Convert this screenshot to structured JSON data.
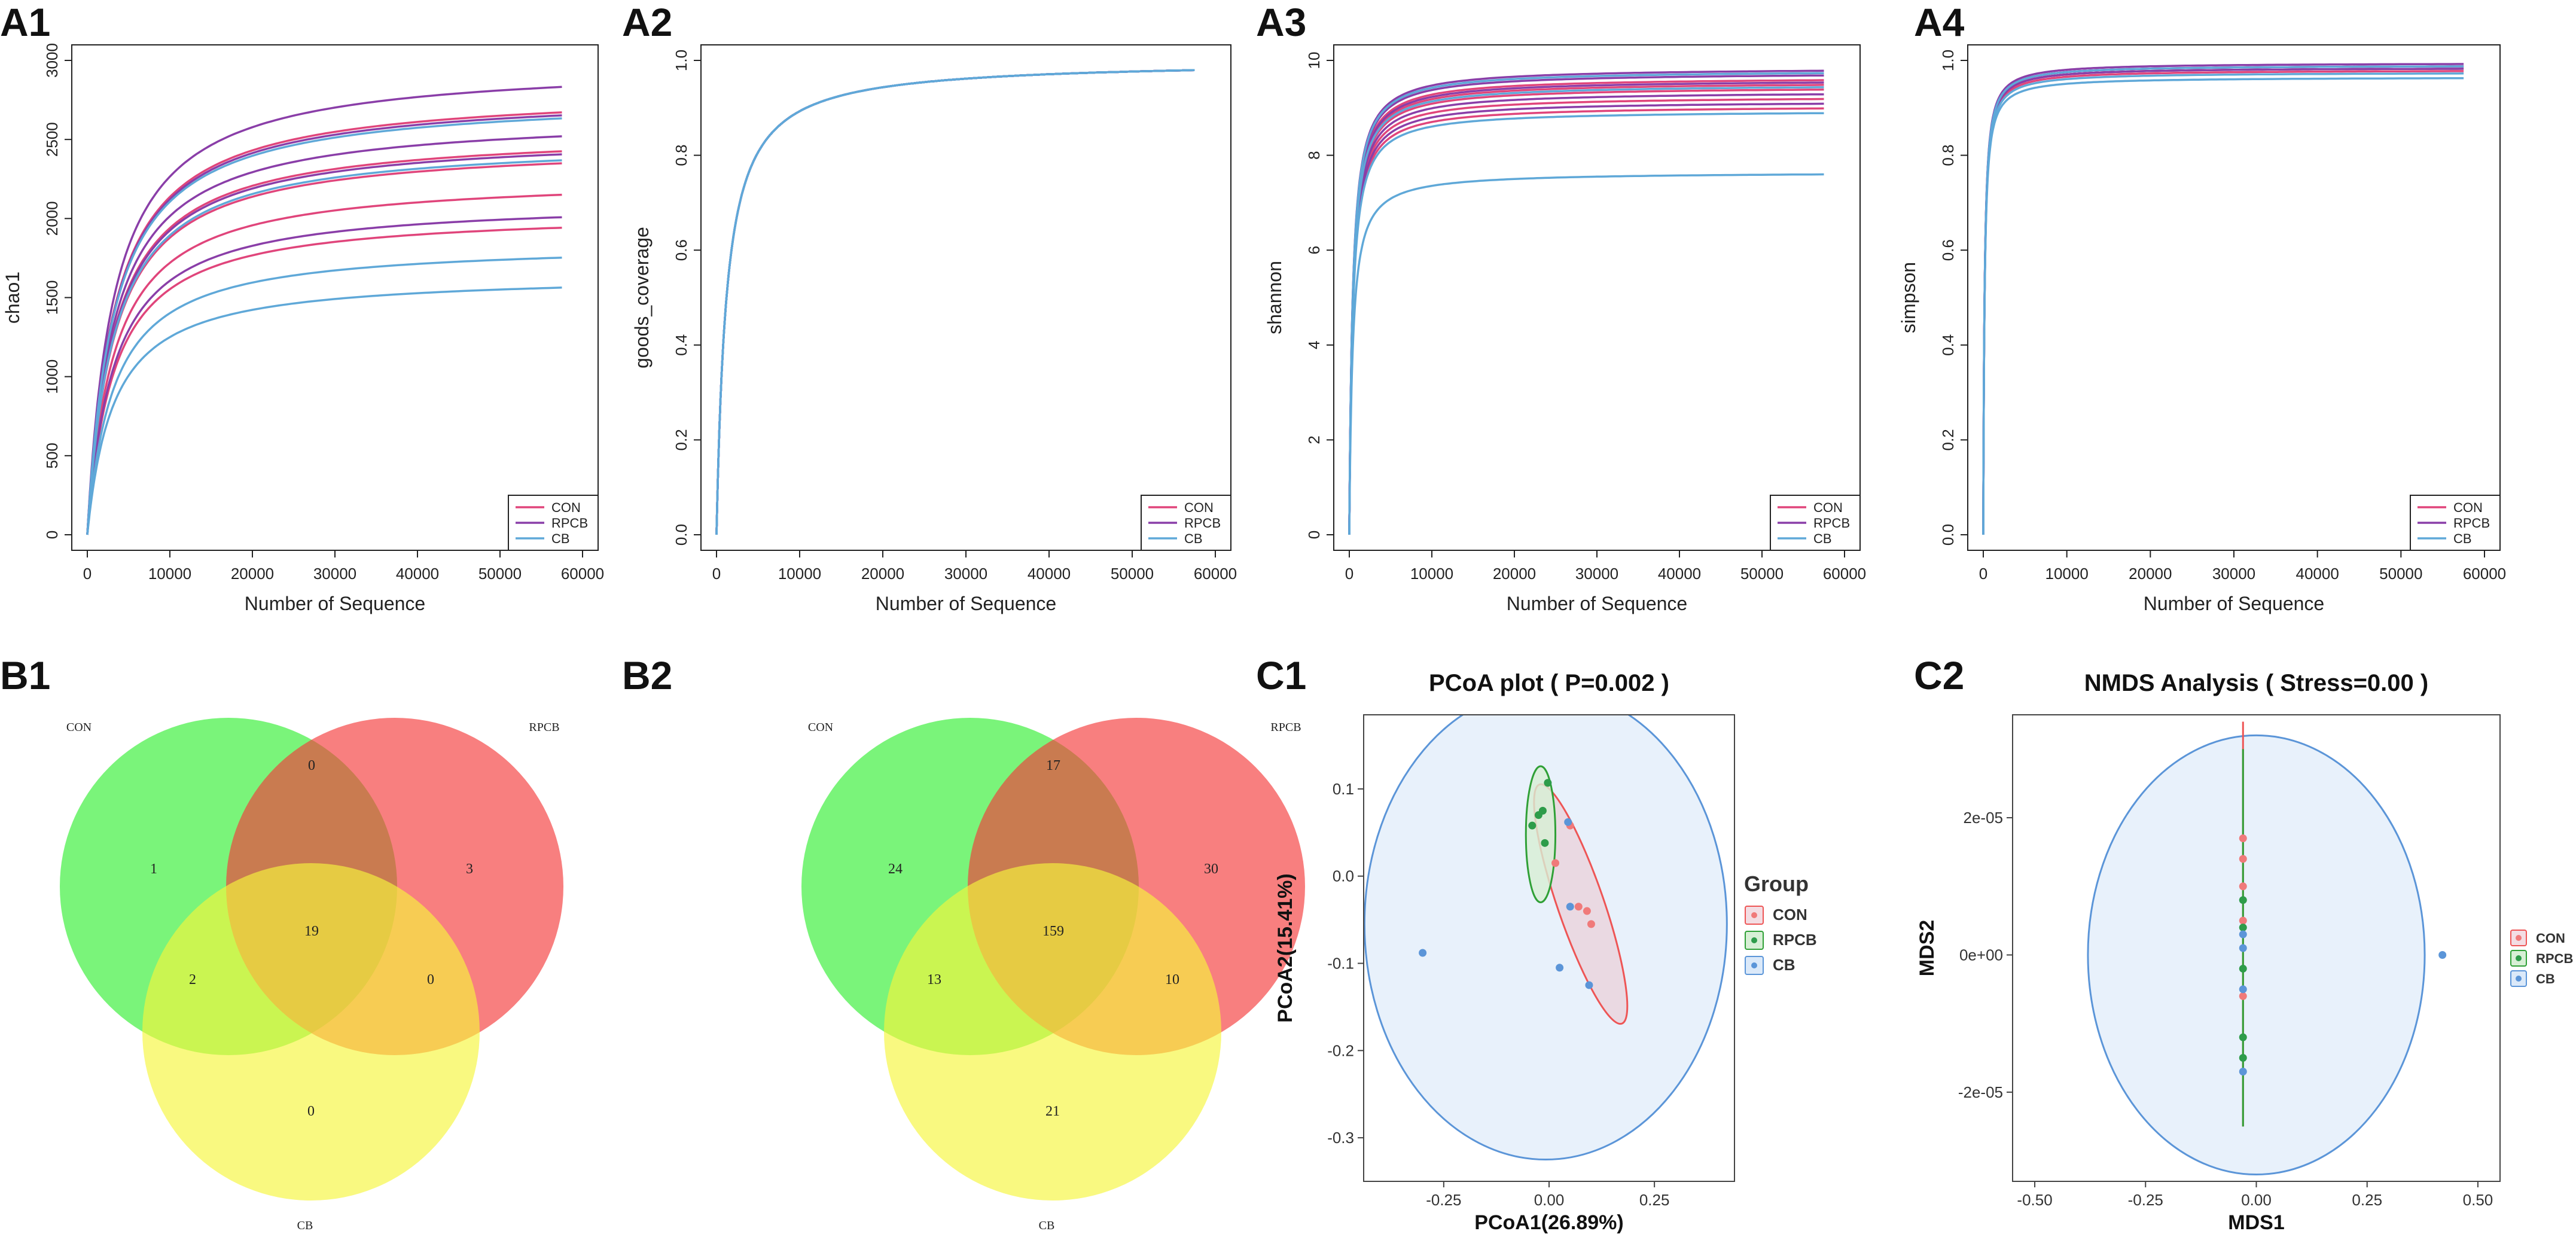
{
  "panel_labels": {
    "A1": "A1",
    "A2": "A2",
    "A3": "A3",
    "A4": "A4",
    "B1": "B1",
    "B2": "B2",
    "C1": "C1",
    "C2": "C2"
  },
  "colors": {
    "con": "#e0457b",
    "rpcb": "#8a3ea8",
    "cb": "#5fa8d8",
    "venn_con": "#33ee33",
    "venn_rpcb": "#f53b3b",
    "venn_cb": "#f6f63c"
  },
  "chart_data": [
    {
      "id": "A1",
      "type": "line",
      "xlabel": "Number of Sequence",
      "ylabel": "chao1",
      "xlim": [
        0,
        60000
      ],
      "ylim": [
        0,
        3000
      ],
      "xticks": [
        "0",
        "10000",
        "20000",
        "30000",
        "40000",
        "50000",
        "60000"
      ],
      "yticks": [
        "0",
        "500",
        "1000",
        "1500",
        "2000",
        "2500",
        "3000"
      ],
      "x_end": 57500,
      "half_saturation": 3200,
      "legend": [
        "CON",
        "RPCB",
        "CB"
      ],
      "series": [
        {
          "name": "CON",
          "asymptotes": [
            2820,
            2560,
            2480,
            2270,
            2050
          ]
        },
        {
          "name": "RPCB",
          "asymptotes": [
            2990,
            2800,
            2660,
            2540,
            2120
          ]
        },
        {
          "name": "CB",
          "asymptotes": [
            2780,
            2500,
            1850,
            1650
          ]
        }
      ]
    },
    {
      "id": "A2",
      "type": "line",
      "xlabel": "Number of Sequence",
      "ylabel": "goods_coverage",
      "xlim": [
        0,
        60000
      ],
      "ylim": [
        0,
        1.0
      ],
      "xticks": [
        "0",
        "10000",
        "20000",
        "30000",
        "40000",
        "50000",
        "60000"
      ],
      "yticks": [
        "0.0",
        "0.2",
        "0.4",
        "0.6",
        "0.8",
        "1.0"
      ],
      "x_end": 57500,
      "half_saturation": 1200,
      "legend": [
        "CON",
        "RPCB",
        "CB"
      ],
      "series": [
        {
          "name": "CON",
          "asymptotes": [
            1.0,
            1.0,
            1.0,
            1.0,
            1.0
          ]
        },
        {
          "name": "RPCB",
          "asymptotes": [
            1.0,
            1.0,
            1.0,
            1.0,
            1.0
          ]
        },
        {
          "name": "CB",
          "asymptotes": [
            1.0,
            1.0,
            1.0,
            1.0
          ]
        }
      ]
    },
    {
      "id": "A3",
      "type": "line",
      "xlabel": "Number of Sequence",
      "ylabel": "shannon",
      "xlim": [
        0,
        60000
      ],
      "ylim": [
        0,
        10
      ],
      "xticks": [
        "0",
        "10000",
        "20000",
        "30000",
        "40000",
        "50000",
        "60000"
      ],
      "yticks": [
        "0",
        "2",
        "4",
        "6",
        "8",
        "10"
      ],
      "x_end": 57500,
      "half_saturation": 400,
      "legend": [
        "CON",
        "RPCB",
        "CB"
      ],
      "series": [
        {
          "name": "CON",
          "asymptotes": [
            9.65,
            9.55,
            9.45,
            9.25,
            9.05
          ]
        },
        {
          "name": "RPCB",
          "asymptotes": [
            9.85,
            9.75,
            9.6,
            9.35,
            9.15
          ]
        },
        {
          "name": "CB",
          "asymptotes": [
            9.8,
            9.5,
            8.95,
            7.65
          ]
        }
      ]
    },
    {
      "id": "A4",
      "type": "line",
      "xlabel": "Number of Sequence",
      "ylabel": "simpson",
      "xlim": [
        0,
        60000
      ],
      "ylim": [
        0,
        1.0
      ],
      "xticks": [
        "0",
        "10000",
        "20000",
        "30000",
        "40000",
        "50000",
        "60000"
      ],
      "yticks": [
        "0.0",
        "0.2",
        "0.4",
        "0.6",
        "0.8",
        "1.0"
      ],
      "x_end": 57500,
      "half_saturation": 150,
      "legend": [
        "CON",
        "RPCB",
        "CB"
      ],
      "series": [
        {
          "name": "CON",
          "asymptotes": [
            0.99,
            0.985,
            0.98
          ]
        },
        {
          "name": "RPCB",
          "asymptotes": [
            0.995,
            0.99,
            0.985
          ]
        },
        {
          "name": "CB",
          "asymptotes": [
            0.99,
            0.975,
            0.965
          ]
        }
      ]
    },
    {
      "id": "B1",
      "type": "venn",
      "sets": [
        "CON",
        "RPCB",
        "CB"
      ],
      "regions": {
        "con_only": 1,
        "rpcb_only": 3,
        "cb_only": 0,
        "con_rpcb": 0,
        "con_cb": 2,
        "rpcb_cb": 0,
        "all": 19
      }
    },
    {
      "id": "B2",
      "type": "venn",
      "sets": [
        "CON",
        "RPCB",
        "CB"
      ],
      "regions": {
        "con_only": 24,
        "rpcb_only": 30,
        "cb_only": 21,
        "con_rpcb": 17,
        "con_cb": 13,
        "rpcb_cb": 10,
        "all": 159
      }
    },
    {
      "id": "C1",
      "type": "scatter",
      "title": "PCoA plot ( P=0.002 )",
      "xlabel": "PCoA1(26.89%)",
      "ylabel": "PCoA2(15.41%)",
      "xlim": [
        -0.44,
        0.44
      ],
      "ylim": [
        -0.35,
        0.185
      ],
      "xticks": [
        -0.25,
        0.0,
        0.25
      ],
      "xtick_labels": [
        "-0.25",
        "0.00",
        "0.25"
      ],
      "yticks": [
        -0.3,
        -0.2,
        -0.1,
        0.0,
        0.1
      ],
      "ytick_labels": [
        "-0.3",
        "-0.2",
        "-0.1",
        "0.0",
        "0.1"
      ],
      "legend_title": "Group",
      "legend": [
        "CON",
        "RPCB",
        "CB"
      ],
      "series": [
        {
          "name": "CON",
          "points": [
            [
              0.05,
              0.058
            ],
            [
              0.07,
              -0.035
            ],
            [
              0.09,
              -0.04
            ],
            [
              0.1,
              -0.055
            ],
            [
              0.015,
              0.015
            ]
          ]
        },
        {
          "name": "RPCB",
          "points": [
            [
              -0.003,
              0.107
            ],
            [
              -0.015,
              0.075
            ],
            [
              -0.025,
              0.07
            ],
            [
              -0.04,
              0.058
            ],
            [
              -0.01,
              0.038
            ]
          ]
        },
        {
          "name": "CB",
          "points": [
            [
              -0.3,
              -0.088
            ],
            [
              0.045,
              0.062
            ],
            [
              0.05,
              -0.035
            ],
            [
              0.025,
              -0.105
            ],
            [
              0.095,
              -0.125
            ]
          ]
        }
      ],
      "ellipses": [
        {
          "name": "CON",
          "center": [
            0.075,
            -0.032
          ],
          "rx": 0.055,
          "ry": 0.145,
          "angle": -19
        },
        {
          "name": "RPCB",
          "center": [
            -0.02,
            0.048
          ],
          "rx": 0.035,
          "ry": 0.078,
          "angle": 0
        },
        {
          "name": "CB",
          "center": [
            -0.008,
            -0.055
          ],
          "rx": 0.43,
          "ry": 0.27,
          "angle": 0
        }
      ]
    },
    {
      "id": "C2",
      "type": "scatter",
      "title": "NMDS Analysis ( Stress=0.00 )",
      "xlabel": "MDS1",
      "ylabel": "MDS2",
      "xlim": [
        -0.55,
        0.55
      ],
      "ylim": [
        -3.3e-05,
        3.5e-05
      ],
      "xticks": [
        -0.5,
        -0.25,
        0.0,
        0.25,
        0.5
      ],
      "xtick_labels": [
        "-0.50",
        "-0.25",
        "0.00",
        "0.25",
        "0.50"
      ],
      "yticks": [
        -2e-05,
        0,
        2e-05
      ],
      "ytick_labels": [
        "-2e-05",
        "0e+00",
        "2e-05"
      ],
      "legend": [
        "CON",
        "RPCB",
        "CB"
      ],
      "series": [
        {
          "name": "CON",
          "points": [
            [
              -0.03,
              1.4e-05
            ],
            [
              -0.03,
              1e-05
            ],
            [
              -0.03,
              5e-06
            ],
            [
              -0.03,
              -6e-06
            ],
            [
              -0.03,
              1.7e-05
            ]
          ]
        },
        {
          "name": "RPCB",
          "points": [
            [
              -0.03,
              8e-06
            ],
            [
              -0.03,
              4e-06
            ],
            [
              -0.03,
              -2e-06
            ],
            [
              -0.03,
              -1.5e-05
            ],
            [
              -0.03,
              -1.2e-05
            ]
          ]
        },
        {
          "name": "CB",
          "points": [
            [
              0.42,
              0.0
            ],
            [
              -0.03,
              1e-06
            ],
            [
              -0.03,
              -5e-06
            ],
            [
              -0.03,
              -1.7e-05
            ],
            [
              -0.03,
              3e-06
            ]
          ]
        }
      ],
      "lines": [
        {
          "name": "CON",
          "x": -0.03,
          "y0": -2.5e-05,
          "y1": 3.4e-05
        },
        {
          "name": "RPCB",
          "x": -0.03,
          "y0": -2.5e-05,
          "y1": 3e-05
        }
      ],
      "ellipses": [
        {
          "name": "CB",
          "center": [
            0.0,
            0.0
          ],
          "rx": 0.38,
          "ry": 3.2e-05,
          "angle": 0
        }
      ]
    }
  ]
}
